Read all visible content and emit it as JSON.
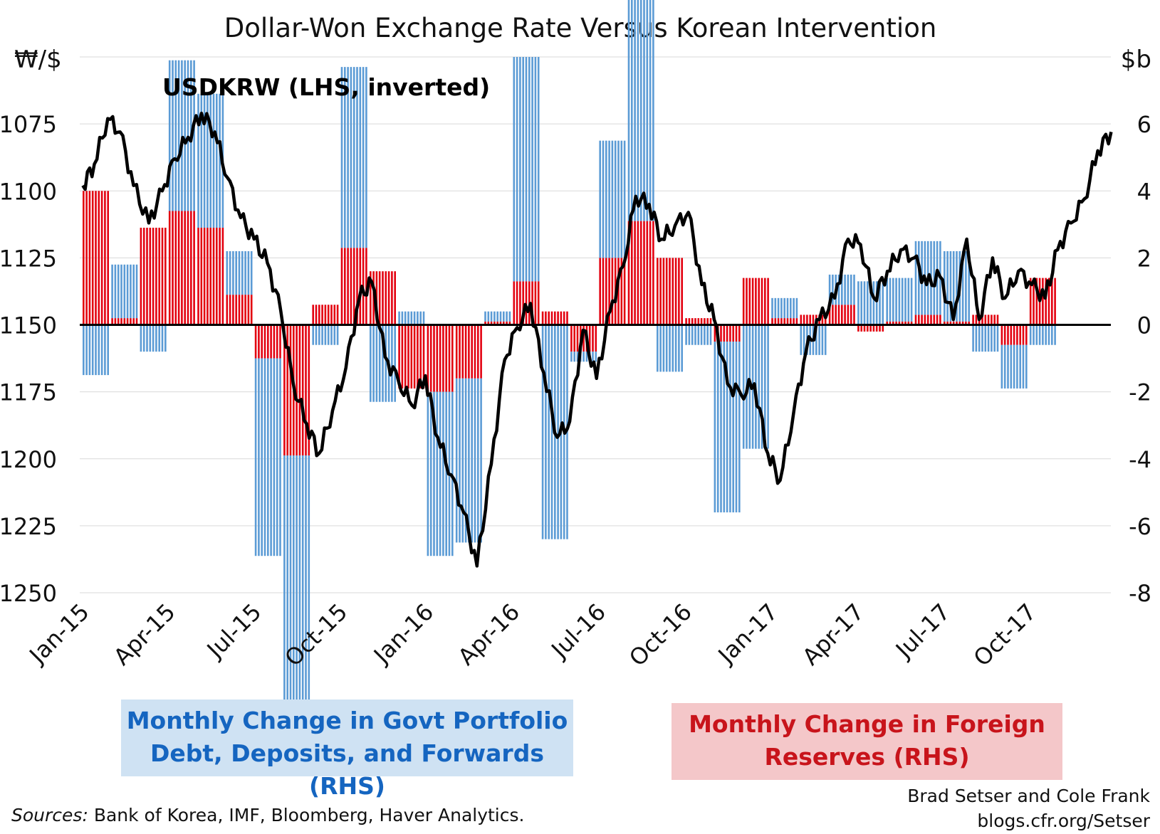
{
  "chart_data": {
    "type": "bar+line",
    "title": "Dollar-Won Exchange Rate Versus Korean Intervention",
    "left_axis": {
      "unit_label": "₩/$",
      "inverted": true,
      "min": 1050,
      "max": 1250,
      "ticks": [
        "1075",
        "1100",
        "1125",
        "1150",
        "1175",
        "1200",
        "1225",
        "1250"
      ]
    },
    "right_axis": {
      "unit_label": "$b",
      "min": -8,
      "max": 8,
      "ticks": [
        "6",
        "4",
        "2",
        "0",
        "-2",
        "-4",
        "-6",
        "-8"
      ]
    },
    "x_labels": [
      "Jan-15",
      "Apr-15",
      "Jul-15",
      "Oct-15",
      "Jan-16",
      "Apr-16",
      "Jul-16",
      "Oct-16",
      "Jan-17",
      "Apr-17",
      "Jul-17",
      "Oct-17"
    ],
    "months": [
      "2015-01",
      "2015-02",
      "2015-03",
      "2015-04",
      "2015-05",
      "2015-06",
      "2015-07",
      "2015-08",
      "2015-09",
      "2015-10",
      "2015-11",
      "2015-12",
      "2016-01",
      "2016-02",
      "2016-03",
      "2016-04",
      "2016-05",
      "2016-06",
      "2016-07",
      "2016-08",
      "2016-09",
      "2016-10",
      "2016-11",
      "2016-12",
      "2017-01",
      "2017-02",
      "2017-03",
      "2017-04",
      "2017-05",
      "2017-06",
      "2017-07",
      "2017-08",
      "2017-09",
      "2017-10",
      "2017-11"
    ],
    "series": [
      {
        "name": "Monthly Change in Govt Portfolio Debt, Deposits, and Forwards (RHS)",
        "color": "#5b9bd5",
        "values": [
          -1.5,
          1.6,
          -0.8,
          4.5,
          4.0,
          1.3,
          -5.9,
          -8.2,
          -0.6,
          5.4,
          -2.3,
          0.4,
          -4.9,
          -4.9,
          0.3,
          6.7,
          -6.4,
          -0.3,
          3.5,
          8.0,
          -1.4,
          -0.6,
          -5.1,
          -3.7,
          0.6,
          -0.9,
          0.9,
          1.3,
          1.3,
          2.2,
          2.1,
          -0.8,
          -1.3,
          -0.6,
          null
        ]
      },
      {
        "name": "Monthly Change in Foreign Reserves (RHS)",
        "color": "#e3000f",
        "values": [
          4.0,
          0.2,
          2.9,
          3.4,
          2.9,
          0.9,
          -1.0,
          -3.9,
          0.6,
          2.3,
          1.6,
          -1.9,
          -2.0,
          -1.6,
          0.1,
          1.3,
          0.4,
          -0.8,
          2.0,
          3.1,
          2.0,
          0.2,
          -0.5,
          1.4,
          0.2,
          0.3,
          0.6,
          -0.2,
          0.1,
          0.3,
          0.1,
          0.3,
          -0.6,
          1.4,
          null
        ]
      },
      {
        "name": "USDKRW (LHS, inverted)",
        "color": "#000000",
        "x": [
          "2015-01-02",
          "2015-01-14",
          "2015-01-28",
          "2015-02-11",
          "2015-02-25",
          "2015-03-11",
          "2015-03-25",
          "2015-04-08",
          "2015-04-22",
          "2015-05-06",
          "2015-05-20",
          "2015-06-03",
          "2015-06-17",
          "2015-07-01",
          "2015-07-15",
          "2015-07-29",
          "2015-08-12",
          "2015-08-26",
          "2015-09-09",
          "2015-09-23",
          "2015-10-07",
          "2015-10-21",
          "2015-11-04",
          "2015-11-18",
          "2015-12-02",
          "2015-12-16",
          "2015-12-30",
          "2016-01-13",
          "2016-01-27",
          "2016-02-10",
          "2016-02-24",
          "2016-03-09",
          "2016-03-23",
          "2016-04-06",
          "2016-04-20",
          "2016-05-04",
          "2016-05-18",
          "2016-06-01",
          "2016-06-15",
          "2016-06-29",
          "2016-07-13",
          "2016-07-27",
          "2016-08-10",
          "2016-08-24",
          "2016-09-07",
          "2016-09-21",
          "2016-10-05",
          "2016-10-19",
          "2016-11-02",
          "2016-11-16",
          "2016-11-30",
          "2016-12-14",
          "2016-12-28",
          "2017-01-11",
          "2017-01-25",
          "2017-02-08",
          "2017-02-22",
          "2017-03-08",
          "2017-03-22",
          "2017-04-05",
          "2017-04-19",
          "2017-05-03",
          "2017-05-17",
          "2017-05-31",
          "2017-06-14",
          "2017-06-28",
          "2017-07-12",
          "2017-07-26",
          "2017-08-09",
          "2017-08-23",
          "2017-09-06",
          "2017-09-20",
          "2017-10-04",
          "2017-10-18",
          "2017-11-01",
          "2017-11-15",
          "2017-11-29",
          "2017-12-13",
          "2017-12-27"
        ],
        "values": [
          1098,
          1090,
          1073,
          1078,
          1098,
          1112,
          1100,
          1088,
          1080,
          1071,
          1078,
          1095,
          1110,
          1118,
          1127,
          1145,
          1172,
          1187,
          1198,
          1182,
          1166,
          1140,
          1134,
          1162,
          1171,
          1180,
          1169,
          1192,
          1206,
          1220,
          1240,
          1202,
          1163,
          1151,
          1142,
          1168,
          1192,
          1186,
          1152,
          1170,
          1145,
          1128,
          1102,
          1105,
          1118,
          1113,
          1108,
          1135,
          1148,
          1172,
          1176,
          1172,
          1198,
          1208,
          1183,
          1160,
          1148,
          1140,
          1118,
          1120,
          1140,
          1130,
          1122,
          1125,
          1135,
          1132,
          1148,
          1118,
          1148,
          1125,
          1140,
          1130,
          1135,
          1140,
          1122,
          1112,
          1103,
          1085,
          1078
        ]
      }
    ],
    "annotation": "USDKRW (LHS, inverted)",
    "grid": true
  },
  "legend": {
    "blue_line1": "Monthly Change in Govt Portfolio",
    "blue_line2": "Debt, Deposits, and Forwards (RHS)",
    "red_line1": "Monthly Change in Foreign",
    "red_line2": "Reserves (RHS)"
  },
  "footer": {
    "sources_label": "Sources:",
    "sources_text": " Bank of Korea, IMF, Bloomberg, Haver Analytics.",
    "credit_line1": "Brad Setser and Cole Frank",
    "credit_line2": "blogs.cfr.org/Setser"
  }
}
